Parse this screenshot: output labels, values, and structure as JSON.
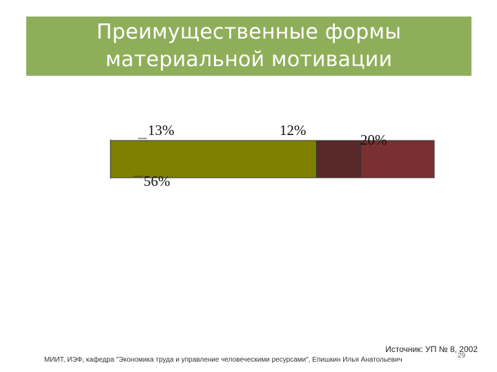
{
  "slide": {
    "title_line1": "Преимущественные формы",
    "title_line2": "материальной мотивации",
    "source": "Источник: УП № 8, 2002",
    "footer": "МИИТ, ИЭФ, кафедра \"Экономика труда и управление человеческими ресурсами\", Епишкин Илья Анатольевич",
    "page_number": "29"
  },
  "colors": {
    "banner": "#8fae5a",
    "series": [
      "#808000",
      "#5a2828",
      "#7a3030"
    ]
  },
  "chart_data": {
    "type": "bar",
    "orientation": "horizontal",
    "stacked": true,
    "title": "",
    "xlabel": "",
    "ylabel": "",
    "categories": [
      ""
    ],
    "series": [
      {
        "values": [
          56
        ],
        "label": "56%"
      },
      {
        "values": [
          12
        ],
        "label": "12%"
      },
      {
        "values": [
          20
        ],
        "label": "20%"
      },
      {
        "values": [
          13
        ],
        "label": "13%"
      }
    ],
    "grid": false,
    "legend": "none"
  }
}
